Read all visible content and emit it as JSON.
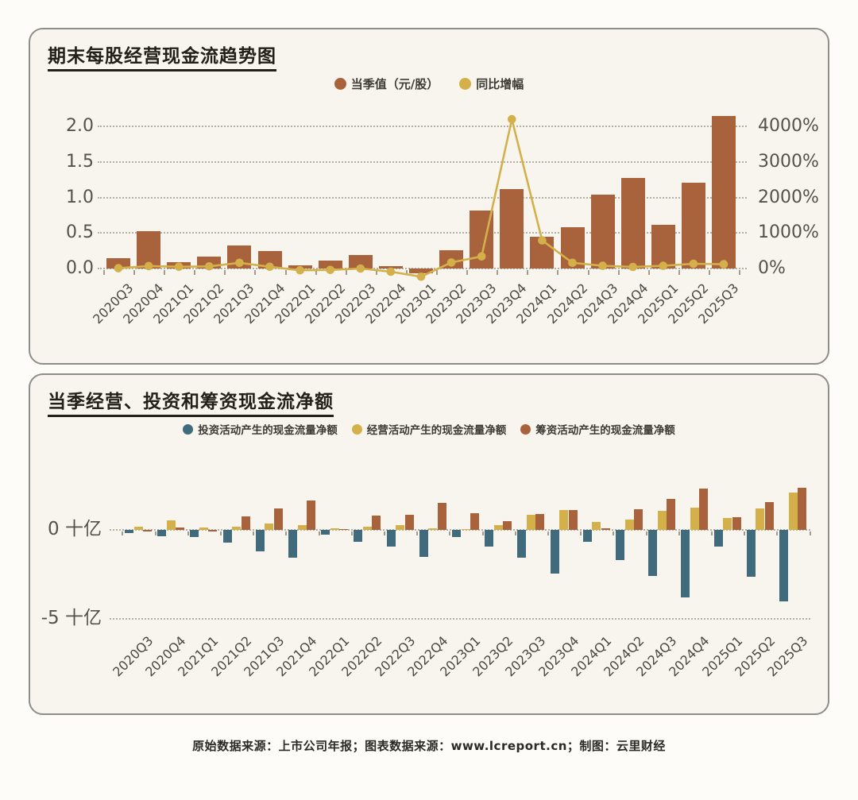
{
  "footer": {
    "text": "原始数据来源：上市公司年报；图表数据来源：www.lcreport.cn；制图：云里财经"
  },
  "colors": {
    "bar_brown": "#a8633c",
    "line_gold": "#d4b04a",
    "invest_teal": "#3f6b7d",
    "operate_gold": "#d4b04a",
    "finance_brown": "#a8633c",
    "grid": "#b6b0a4",
    "panel_bg": "#f8f5ee",
    "panel_border": "#8f8d88"
  },
  "chart_data": [
    {
      "type": "bar",
      "title": "期末每股经营现金流趋势图",
      "categories": [
        "2020Q3",
        "2020Q4",
        "2021Q1",
        "2021Q2",
        "2021Q3",
        "2021Q4",
        "2022Q1",
        "2022Q2",
        "2022Q3",
        "2022Q4",
        "2023Q1",
        "2023Q2",
        "2023Q3",
        "2023Q4",
        "2024Q1",
        "2024Q2",
        "2024Q3",
        "2024Q4",
        "2025Q1",
        "2025Q2",
        "2025Q3"
      ],
      "series": [
        {
          "name": "当季值（元/股）",
          "type": "bar",
          "axis": "left",
          "color": "#a8633c",
          "values": [
            0.15,
            0.52,
            0.09,
            0.17,
            0.32,
            0.25,
            0.05,
            0.11,
            0.19,
            0.03,
            -0.07,
            0.26,
            0.82,
            1.12,
            0.45,
            0.58,
            1.04,
            1.27,
            0.61,
            1.21,
            2.14
          ]
        },
        {
          "name": "同比增幅",
          "type": "line",
          "axis": "right",
          "color": "#d4b04a",
          "values": [
            10,
            70,
            50,
            60,
            160,
            50,
            -50,
            -40,
            0,
            -90,
            -230,
            170,
            340,
            4200,
            790,
            160,
            75,
            45,
            75,
            135,
            120
          ]
        }
      ],
      "left_axis": {
        "ticks": [
          "0.0",
          "0.5",
          "1.0",
          "1.5",
          "2.0"
        ],
        "values": [
          0,
          0.5,
          1.0,
          1.5,
          2.0
        ]
      },
      "right_axis": {
        "ticks": [
          "0%",
          "1000%",
          "2000%",
          "3000%",
          "4000%"
        ],
        "values": [
          0,
          1000,
          2000,
          3000,
          4000
        ],
        "unit": "%"
      },
      "grid": "dotted"
    },
    {
      "type": "grouped-bar",
      "title": "当季经营、投资和筹资现金流净额",
      "unit": "十亿",
      "categories": [
        "2020Q3",
        "2020Q4",
        "2021Q1",
        "2021Q2",
        "2021Q3",
        "2021Q4",
        "2022Q1",
        "2022Q2",
        "2022Q3",
        "2022Q4",
        "2023Q1",
        "2023Q2",
        "2023Q3",
        "2023Q4",
        "2024Q1",
        "2024Q2",
        "2024Q3",
        "2024Q4",
        "2025Q1",
        "2025Q2",
        "2025Q3"
      ],
      "series": [
        {
          "name": "投资活动产生的现金流量净额",
          "color": "#3f6b7d",
          "values": [
            -0.2,
            -0.35,
            -0.4,
            -0.7,
            -1.2,
            -1.55,
            -0.25,
            -0.65,
            -0.95,
            -1.5,
            -0.4,
            -0.95,
            -1.55,
            -2.45,
            -0.65,
            -1.7,
            -2.6,
            -3.8,
            -0.95,
            -2.65,
            -4.0
          ]
        },
        {
          "name": "经营活动产生的现金流量净额",
          "color": "#d4b04a",
          "values": [
            0.2,
            0.55,
            0.15,
            0.2,
            0.35,
            0.25,
            0.1,
            0.2,
            0.25,
            0.1,
            0.05,
            0.25,
            0.85,
            1.1,
            0.45,
            0.6,
            1.05,
            1.25,
            0.65,
            1.2,
            2.1
          ]
        },
        {
          "name": "筹资活动产生的现金流量净额",
          "color": "#a8633c",
          "values": [
            -0.1,
            0.15,
            -0.05,
            0.75,
            1.2,
            1.65,
            0.05,
            0.8,
            0.85,
            1.5,
            0.95,
            0.5,
            0.9,
            1.1,
            0.1,
            1.15,
            1.75,
            2.3,
            0.7,
            1.55,
            2.35
          ]
        }
      ],
      "y_axis": {
        "ticks": [
          "0 十亿",
          "-5 十亿"
        ],
        "values": [
          0,
          -5
        ]
      },
      "grid": "dotted"
    }
  ]
}
